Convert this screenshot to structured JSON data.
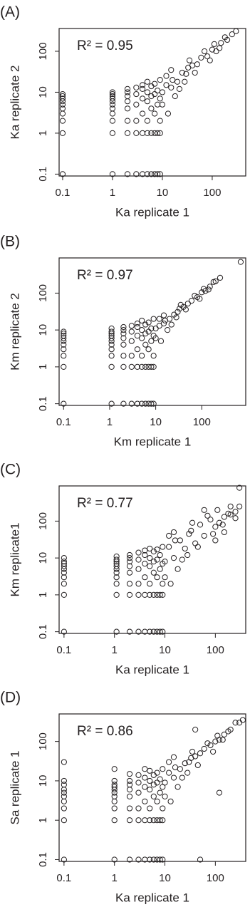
{
  "chart_data": [
    {
      "type": "scatter",
      "panel_label": "(A)",
      "annotation": "R² = 0.95",
      "x_label": "Ka replicate 1",
      "y_label": "Ka replicate 2",
      "log_x": true,
      "log_y": true,
      "color": "#231f20",
      "xlim": [
        0.085,
        470
      ],
      "ylim": [
        0.09,
        360
      ],
      "xticks": [
        0.1,
        1,
        10,
        100
      ],
      "yticks": [
        0.1,
        1,
        10,
        100
      ],
      "x": [
        0.1,
        0.1,
        0.1,
        0.1,
        0.1,
        0.1,
        0.1,
        0.1,
        0.1,
        0.1,
        1,
        1,
        1,
        1,
        1,
        1,
        1,
        1,
        1,
        1,
        1,
        2,
        2,
        2,
        2,
        2,
        2,
        2,
        2,
        3,
        3,
        3,
        3,
        3,
        3,
        4,
        4,
        4,
        4,
        4,
        4,
        5,
        5,
        5,
        5,
        5,
        5,
        6,
        6,
        6,
        6,
        6,
        7,
        7,
        7,
        7,
        7,
        8,
        8,
        8,
        8,
        9,
        9,
        9,
        9,
        9,
        10,
        12,
        15,
        20,
        25,
        30,
        40,
        50,
        60,
        80,
        100,
        120,
        150,
        200,
        250,
        300,
        12,
        15,
        18,
        22,
        35,
        45,
        70,
        90,
        110,
        140,
        180,
        10,
        13,
        16,
        28,
        33
      ],
      "values": [
        0.1,
        1,
        2,
        3,
        4,
        5,
        6,
        7,
        8,
        9,
        0.1,
        1,
        2,
        3,
        4,
        5,
        6,
        7,
        8,
        9,
        10,
        0.1,
        1,
        2,
        4,
        6,
        8,
        10,
        12,
        0.1,
        1,
        2,
        5,
        9,
        13,
        0.1,
        1,
        3,
        7,
        12,
        15,
        0.1,
        1,
        2,
        6,
        10,
        18,
        0.1,
        1,
        4,
        8,
        14,
        0.1,
        1,
        3,
        9,
        16,
        0.1,
        1,
        5,
        11,
        0.1,
        1,
        2,
        7,
        20,
        10,
        15,
        13,
        18,
        30,
        28,
        45,
        48,
        70,
        75,
        110,
        100,
        160,
        190,
        260,
        310,
        25,
        35,
        8,
        12,
        60,
        30,
        100,
        60,
        150,
        120,
        220,
        5,
        3,
        20,
        18,
        40
      ]
    },
    {
      "type": "scatter",
      "panel_label": "(B)",
      "annotation": "R² = 0.97",
      "x_label": "Km replicate 1",
      "y_label": "Km replicate 2",
      "log_x": true,
      "log_y": true,
      "color": "#231f20",
      "xlim": [
        0.08,
        900
      ],
      "ylim": [
        0.09,
        900
      ],
      "xticks": [
        0.1,
        1,
        10,
        100
      ],
      "yticks": [
        0.1,
        1,
        10,
        100
      ],
      "x": [
        0.1,
        0.1,
        0.1,
        0.1,
        0.1,
        0.1,
        0.1,
        0.1,
        0.1,
        0.1,
        1.1,
        1.1,
        1.1,
        1.1,
        1.1,
        1.1,
        1.1,
        1.1,
        1.1,
        1.1,
        1.1,
        2,
        2,
        2,
        2,
        2,
        2,
        2,
        2,
        3,
        3,
        3,
        3,
        3,
        3,
        4,
        4,
        4,
        4,
        4,
        4,
        5,
        5,
        5,
        5,
        5,
        5,
        6,
        6,
        6,
        6,
        6,
        7,
        7,
        7,
        7,
        7,
        8,
        8,
        8,
        8,
        9,
        9,
        9,
        9,
        9,
        10,
        12,
        15,
        20,
        25,
        30,
        40,
        50,
        60,
        80,
        100,
        120,
        150,
        200,
        250,
        700,
        12,
        15,
        18,
        22,
        35,
        45,
        70,
        90,
        110,
        140,
        180,
        10,
        13,
        16,
        28,
        33
      ],
      "values": [
        0.1,
        1,
        2,
        3,
        4,
        5,
        6,
        7,
        8,
        9,
        0.1,
        1,
        2,
        3,
        4,
        5,
        6,
        7,
        8,
        9,
        11,
        0.1,
        1,
        2,
        4,
        6,
        8,
        10,
        12,
        0.1,
        1,
        2,
        5,
        9,
        13,
        0.1,
        1,
        3,
        7,
        12,
        15,
        0.1,
        1,
        2,
        6,
        10,
        18,
        0.1,
        1,
        4,
        8,
        14,
        0.1,
        1,
        3,
        9,
        16,
        0.1,
        1,
        5,
        11,
        0.1,
        1,
        2,
        7,
        20,
        11,
        13,
        15,
        20,
        26,
        31,
        42,
        52,
        62,
        78,
        105,
        115,
        150,
        210,
        260,
        700,
        20,
        25,
        10,
        14,
        48,
        36,
        85,
        70,
        130,
        125,
        200,
        6,
        5,
        18,
        22,
        38
      ]
    },
    {
      "type": "scatter",
      "panel_label": "(C)",
      "annotation": "R² = 0.77",
      "x_label": "Ka replicate 1",
      "y_label": "Km replicate1",
      "log_x": true,
      "log_y": true,
      "color": "#231f20",
      "xlim": [
        0.08,
        400
      ],
      "ylim": [
        0.09,
        900
      ],
      "xticks": [
        0.1,
        1,
        10,
        100
      ],
      "yticks": [
        0.1,
        1,
        10,
        100
      ],
      "x": [
        0.1,
        0.1,
        0.1,
        0.1,
        0.1,
        0.1,
        0.1,
        0.1,
        0.1,
        0.1,
        1.1,
        1.1,
        1.1,
        1.1,
        1.1,
        1.1,
        1.1,
        1.1,
        1.1,
        1.1,
        1.1,
        2,
        2,
        2,
        2,
        2,
        2,
        2,
        2,
        3,
        3,
        3,
        3,
        3,
        3,
        4,
        4,
        4,
        4,
        4,
        4,
        5,
        5,
        5,
        5,
        5,
        5,
        6,
        6,
        6,
        6,
        6,
        7,
        7,
        7,
        7,
        7,
        8,
        8,
        8,
        8,
        9,
        9,
        9,
        9,
        9,
        10,
        12,
        15,
        20,
        25,
        30,
        40,
        50,
        60,
        80,
        100,
        120,
        150,
        200,
        250,
        300,
        12,
        15,
        18,
        22,
        35,
        45,
        70,
        90,
        110,
        140,
        180,
        10,
        13,
        16,
        28,
        33,
        200,
        250,
        300,
        150,
        100,
        60
      ],
      "values": [
        0.1,
        1,
        2,
        3,
        4,
        5,
        6,
        7,
        8,
        10,
        0.1,
        1,
        2,
        3,
        4,
        5,
        6,
        7,
        8,
        9,
        11,
        0.1,
        1,
        2,
        4,
        6,
        8,
        10,
        12,
        0.1,
        1,
        2,
        5,
        9,
        14,
        0.1,
        1,
        3,
        7,
        12,
        16,
        0.1,
        1,
        2,
        6,
        10,
        18,
        0.1,
        1,
        4,
        8,
        15,
        0.1,
        1,
        3,
        9,
        17,
        0.1,
        1,
        5,
        12,
        0.1,
        1,
        2,
        7,
        20,
        8,
        20,
        10,
        30,
        18,
        45,
        25,
        80,
        40,
        110,
        70,
        90,
        130,
        150,
        180,
        250,
        40,
        50,
        5,
        9,
        90,
        20,
        140,
        45,
        200,
        80,
        160,
        3,
        2,
        30,
        12,
        55,
        250,
        120,
        800,
        50,
        30,
        200
      ]
    },
    {
      "type": "scatter",
      "panel_label": "(D)",
      "annotation": "R² = 0.86",
      "x_label": "Ka replicate 1",
      "y_label": "Sa replicate 1",
      "log_x": true,
      "log_y": true,
      "color": "#231f20",
      "xlim": [
        0.08,
        400
      ],
      "ylim": [
        0.09,
        500
      ],
      "xticks": [
        0.1,
        1,
        10,
        100
      ],
      "yticks": [
        0.1,
        1,
        10,
        100
      ],
      "x": [
        0.1,
        0.1,
        0.1,
        0.1,
        0.1,
        0.1,
        0.1,
        0.1,
        0.1,
        0.1,
        1,
        1,
        1,
        1,
        1,
        1,
        1,
        1,
        1,
        1,
        1,
        2,
        2,
        2,
        2,
        2,
        2,
        2,
        2,
        3,
        3,
        3,
        3,
        3,
        3,
        4,
        4,
        4,
        4,
        4,
        4,
        5,
        5,
        5,
        5,
        5,
        5,
        6,
        6,
        6,
        6,
        6,
        7,
        7,
        7,
        7,
        7,
        8,
        8,
        8,
        8,
        9,
        9,
        9,
        9,
        9,
        10,
        12,
        15,
        20,
        25,
        30,
        40,
        50,
        60,
        80,
        100,
        120,
        150,
        200,
        250,
        300,
        12,
        15,
        18,
        22,
        35,
        45,
        70,
        90,
        110,
        140,
        180,
        10,
        13,
        16,
        28,
        33,
        120,
        50,
        350,
        40
      ],
      "values": [
        0.1,
        1,
        2,
        3,
        4,
        5,
        6,
        8,
        10,
        30,
        0.1,
        1,
        2,
        3,
        4,
        5,
        6,
        7,
        8,
        10,
        20,
        0.1,
        1,
        2,
        4,
        6,
        8,
        10,
        15,
        0.1,
        1,
        2,
        5,
        9,
        14,
        0.1,
        1,
        3,
        7,
        12,
        20,
        0.1,
        1,
        2,
        6,
        10,
        18,
        0.1,
        1,
        4,
        8,
        14,
        0.1,
        1,
        3,
        9,
        16,
        0.1,
        1,
        5,
        11,
        0.1,
        1,
        2,
        7,
        20,
        9,
        16,
        12,
        20,
        28,
        30,
        42,
        50,
        65,
        80,
        100,
        110,
        150,
        200,
        300,
        300,
        30,
        40,
        7,
        12,
        55,
        25,
        90,
        55,
        140,
        110,
        180,
        4,
        3,
        22,
        16,
        38,
        5,
        0.1,
        350,
        200
      ]
    }
  ]
}
